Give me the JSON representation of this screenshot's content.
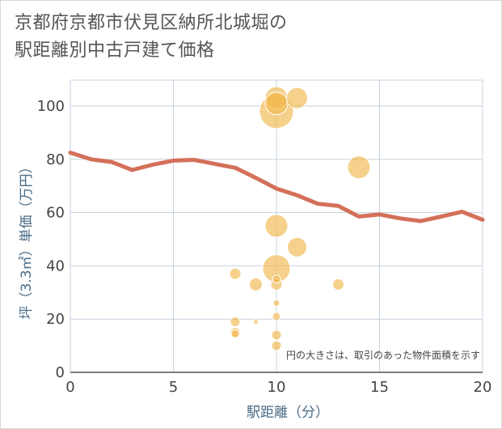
{
  "title_line1": "京都府京都市伏見区納所北城堀の",
  "title_line2": "駅距離別中古戸建て価格",
  "chart_data": {
    "type": "scatter",
    "xlabel": "駅距離（分）",
    "ylabel": "坪（3.3㎡）単価（万円）",
    "xlim": [
      0,
      20
    ],
    "ylim": [
      0,
      105
    ],
    "xticks": [
      0,
      5,
      10,
      15,
      20
    ],
    "yticks": [
      0,
      20,
      40,
      60,
      80,
      100
    ],
    "grid": true,
    "annotation": "円の大きさは、取引のあった物件面積を示す",
    "colors": {
      "bubble": "#f1b84f",
      "line": "#d4705a",
      "grid": "#c5d3df"
    },
    "bubbles": [
      {
        "x": 10,
        "y": 103,
        "size": 14
      },
      {
        "x": 10,
        "y": 101,
        "size": 14
      },
      {
        "x": 10,
        "y": 98,
        "size": 21
      },
      {
        "x": 11,
        "y": 103,
        "size": 13
      },
      {
        "x": 14,
        "y": 77,
        "size": 14
      },
      {
        "x": 10,
        "y": 55,
        "size": 14
      },
      {
        "x": 11,
        "y": 47,
        "size": 12
      },
      {
        "x": 10,
        "y": 39,
        "size": 17
      },
      {
        "x": 8,
        "y": 37,
        "size": 7
      },
      {
        "x": 9,
        "y": 33,
        "size": 8
      },
      {
        "x": 10,
        "y": 35,
        "size": 5
      },
      {
        "x": 10,
        "y": 33,
        "size": 7
      },
      {
        "x": 13,
        "y": 33,
        "size": 7
      },
      {
        "x": 10,
        "y": 26,
        "size": 4
      },
      {
        "x": 10,
        "y": 21,
        "size": 5
      },
      {
        "x": 8,
        "y": 19,
        "size": 6
      },
      {
        "x": 9,
        "y": 19,
        "size": 3
      },
      {
        "x": 8,
        "y": 15,
        "size": 6
      },
      {
        "x": 8,
        "y": 14.5,
        "size": 5
      },
      {
        "x": 10,
        "y": 14,
        "size": 6
      },
      {
        "x": 10,
        "y": 10,
        "size": 6
      }
    ],
    "line": {
      "x": [
        0,
        1,
        2,
        3,
        4,
        5,
        6,
        7,
        8,
        9,
        10,
        11,
        12,
        13,
        14,
        15,
        16,
        17,
        18,
        19,
        20
      ],
      "y": [
        82.5,
        80,
        79,
        76,
        78,
        79.5,
        79.8,
        78.3,
        76.8,
        73,
        69,
        66.5,
        63.3,
        62.5,
        58.5,
        59.3,
        57.8,
        56.8,
        58.5,
        60.3,
        57.3
      ]
    }
  }
}
